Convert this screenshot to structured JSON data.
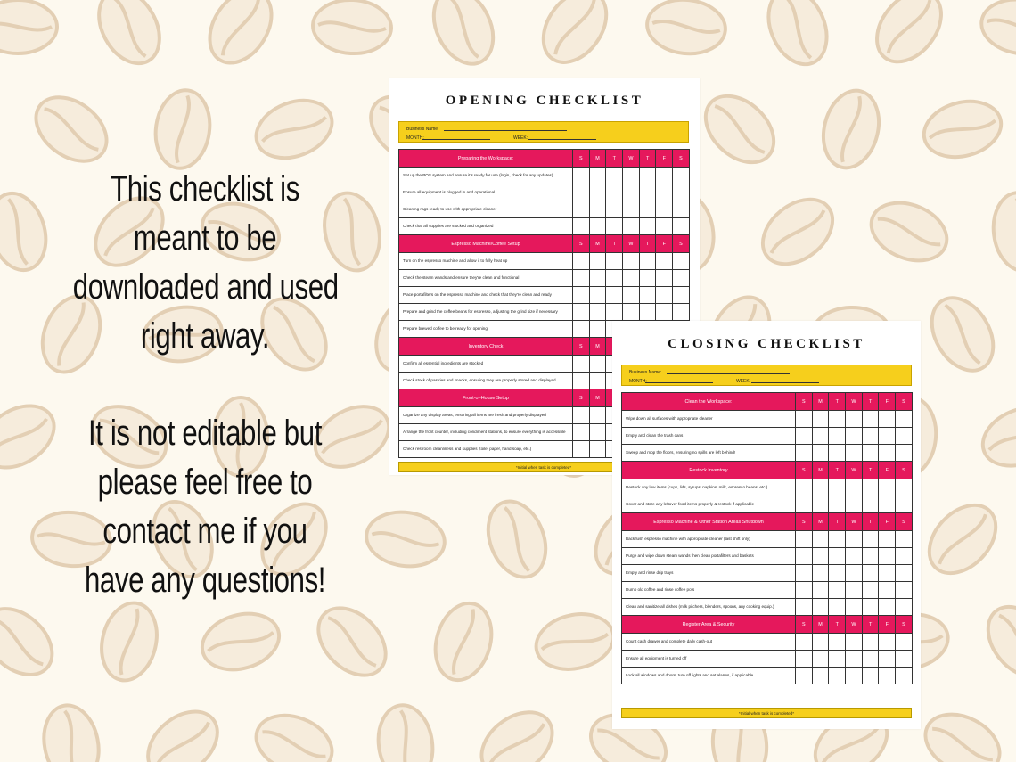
{
  "description": {
    "paragraphs": [
      [
        "This checklist is",
        "meant to be",
        "downloaded and used",
        "right away."
      ],
      [
        "It is not editable but",
        "please feel free to",
        "contact me if you",
        "have any questions!"
      ]
    ]
  },
  "opening": {
    "title": "OPENING CHECKLIST",
    "form": {
      "business": "Business Name:",
      "month": "MONTH:",
      "week": "WEEK:"
    },
    "days": [
      "S",
      "M",
      "T",
      "W",
      "T",
      "F",
      "S"
    ],
    "sections": [
      {
        "title": "Preparing the Workspace:",
        "tasks": [
          "Set up the POS system and ensure it's ready for use (login, check for any updates)",
          "Ensure all equipment is plugged in and operational",
          "Cleaning rags ready to use with appropriate cleaner",
          "Check that all supplies are stocked and organized"
        ]
      },
      {
        "title": "Espresso Machine/Coffee Setup",
        "tasks": [
          "Turn on the espresso machine and allow it to fully heat up",
          "Check the steam wands and ensure they're clean and functional",
          "Place portafilters on the espresso machine and check that they're clean and ready",
          "Prepare and grind the coffee beans for espresso, adjusting the grind size if necessary",
          "Prepare brewed coffee to be ready for opening"
        ]
      },
      {
        "title": "Inventory Check",
        "tasks": [
          "Confirm all essential ingredients are stocked",
          "Check stock of pastries and snacks, ensuring they are properly stored and displayed"
        ]
      },
      {
        "title": "Front-of-House Setup",
        "tasks": [
          "Organize any display areas, ensuring all items are fresh and properly displayed",
          "Arrange the front counter, including condiment stations, to ensure everything is accessible",
          "Check restroom cleanliness and supplies (toilet paper, hand soap, etc.)"
        ]
      }
    ],
    "footer": "*Initial when task is completed*"
  },
  "closing": {
    "title": "CLOSING CHECKLIST",
    "form": {
      "business": "Business Name:",
      "month": "MONTH:",
      "week": "WEEK:"
    },
    "days": [
      "S",
      "M",
      "T",
      "W",
      "T",
      "F",
      "S"
    ],
    "sections": [
      {
        "title": "Clean the Workspace:",
        "tasks": [
          "Wipe down all surfaces with appropriate cleaner",
          "Empty and clean the trash cans",
          "Sweep and mop the floors, ensuring no spills are left behind!"
        ]
      },
      {
        "title": "Restock Inventory",
        "tasks": [
          "Restock any low items (cups, lids, syrups, napkins, milk, espresso beans, etc.)",
          "Cover and store any leftover food items properly & restock if applicable"
        ]
      },
      {
        "title": "Espresso Machine & Other Station Areas Shutdown",
        "tasks": [
          "Backflush espresso machine with appropriate cleaner (last shift only)",
          "Purge and wipe down steam wands then clean portafilters and baskets",
          "Empty and rinse drip trays",
          "Dump old coffee and rinse coffee pots",
          "Clean and sanitize all dishes (milk pitchers, blenders, spoons, any cooking equip.)"
        ]
      },
      {
        "title": "Register Area & Security",
        "tasks": [
          "Count cash drawer and complete daily cash-out",
          "Ensure all equipment is turned off",
          "Lock all windows and doors, turn off lights and set alarms, if applicable."
        ]
      }
    ],
    "footer": "*Initial when task is completed*"
  }
}
